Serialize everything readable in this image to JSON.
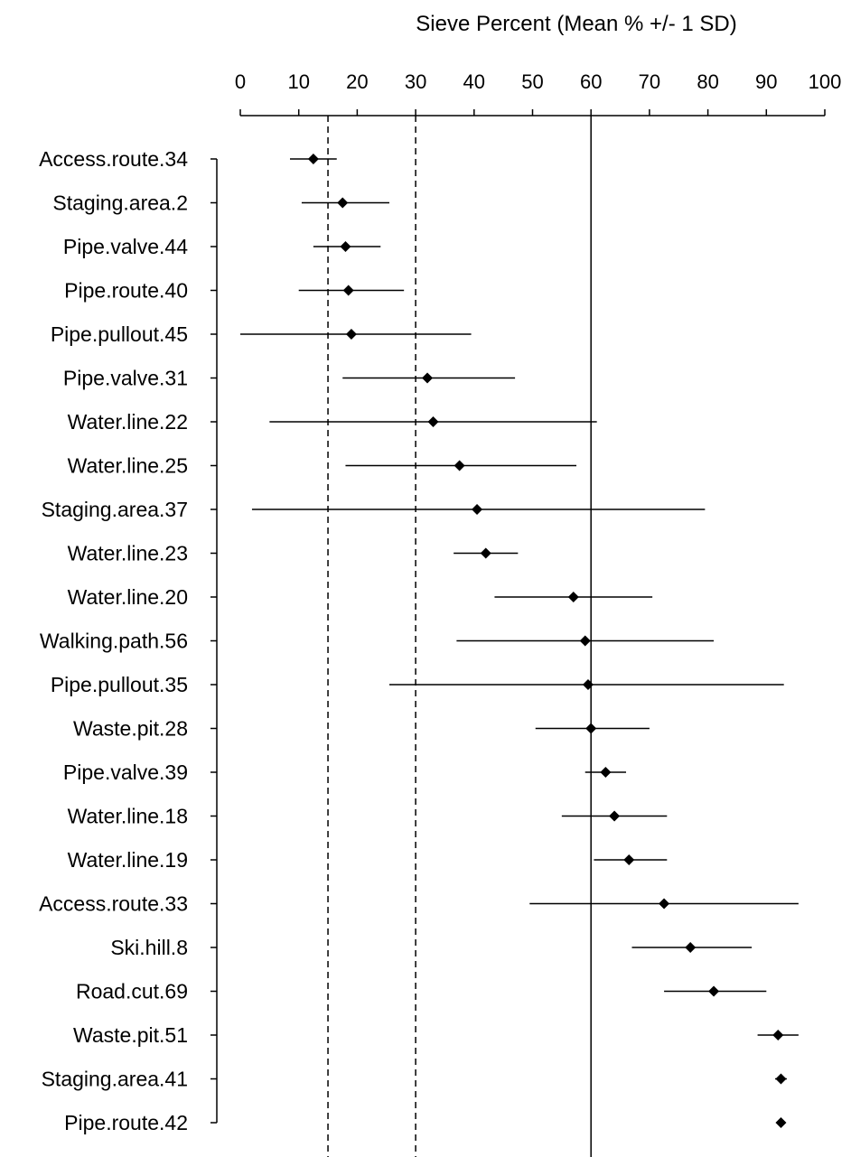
{
  "chart_data": {
    "type": "scatter",
    "title": "Sieve Percent  (Mean % +/- 1 SD)",
    "xlim": [
      0,
      100
    ],
    "x_ticks": [
      "0",
      "10",
      "20",
      "30",
      "40",
      "50",
      "60",
      "70",
      "80",
      "90",
      "100"
    ],
    "x_axis_position": "top",
    "error_bars": "+/- 1 SD",
    "reference_lines": [
      {
        "value": 15,
        "style": "dashed"
      },
      {
        "value": 30,
        "style": "dashed"
      },
      {
        "value": 60,
        "style": "solid"
      }
    ],
    "grid": false,
    "colors": {
      "marker": "#000000",
      "line": "#000000"
    },
    "points": [
      {
        "label": "Access.route.34",
        "mean": 12.5,
        "low": 8.5,
        "high": 16.5
      },
      {
        "label": "Staging.area.2",
        "mean": 17.5,
        "low": 10.5,
        "high": 25.5
      },
      {
        "label": "Pipe.valve.44",
        "mean": 18,
        "low": 12.5,
        "high": 24
      },
      {
        "label": "Pipe.route.40",
        "mean": 18.5,
        "low": 10,
        "high": 28
      },
      {
        "label": "Pipe.pullout.45",
        "mean": 19,
        "low": 0,
        "high": 39.5
      },
      {
        "label": "Pipe.valve.31",
        "mean": 32,
        "low": 17.5,
        "high": 47
      },
      {
        "label": "Water.line.22",
        "mean": 33,
        "low": 5,
        "high": 61
      },
      {
        "label": "Water.line.25",
        "mean": 37.5,
        "low": 18,
        "high": 57.5
      },
      {
        "label": "Staging.area.37",
        "mean": 40.5,
        "low": 2,
        "high": 79.5
      },
      {
        "label": "Water.line.23",
        "mean": 42,
        "low": 36.5,
        "high": 47.5
      },
      {
        "label": "Water.line.20",
        "mean": 57,
        "low": 43.5,
        "high": 70.5
      },
      {
        "label": "Walking.path.56",
        "mean": 59,
        "low": 37,
        "high": 81
      },
      {
        "label": "Pipe.pullout.35",
        "mean": 59.5,
        "low": 25.5,
        "high": 93
      },
      {
        "label": "Waste.pit.28",
        "mean": 60,
        "low": 50.5,
        "high": 70
      },
      {
        "label": "Pipe.valve.39",
        "mean": 62.5,
        "low": 59,
        "high": 66
      },
      {
        "label": "Water.line.18",
        "mean": 64,
        "low": 55,
        "high": 73
      },
      {
        "label": "Water.line.19",
        "mean": 66.5,
        "low": 60.5,
        "high": 73
      },
      {
        "label": "Access.route.33",
        "mean": 72.5,
        "low": 49.5,
        "high": 95.5
      },
      {
        "label": "Ski.hill.8",
        "mean": 77,
        "low": 67,
        "high": 87.5
      },
      {
        "label": "Road.cut.69",
        "mean": 81,
        "low": 72.5,
        "high": 90
      },
      {
        "label": "Waste.pit.51",
        "mean": 92,
        "low": 88.5,
        "high": 95.5
      },
      {
        "label": "Staging.area.41",
        "mean": 92.5,
        "low": 91.5,
        "high": 93.5
      },
      {
        "label": "Pipe.route.42",
        "mean": 92.5,
        "low": 92,
        "high": 93
      }
    ]
  }
}
